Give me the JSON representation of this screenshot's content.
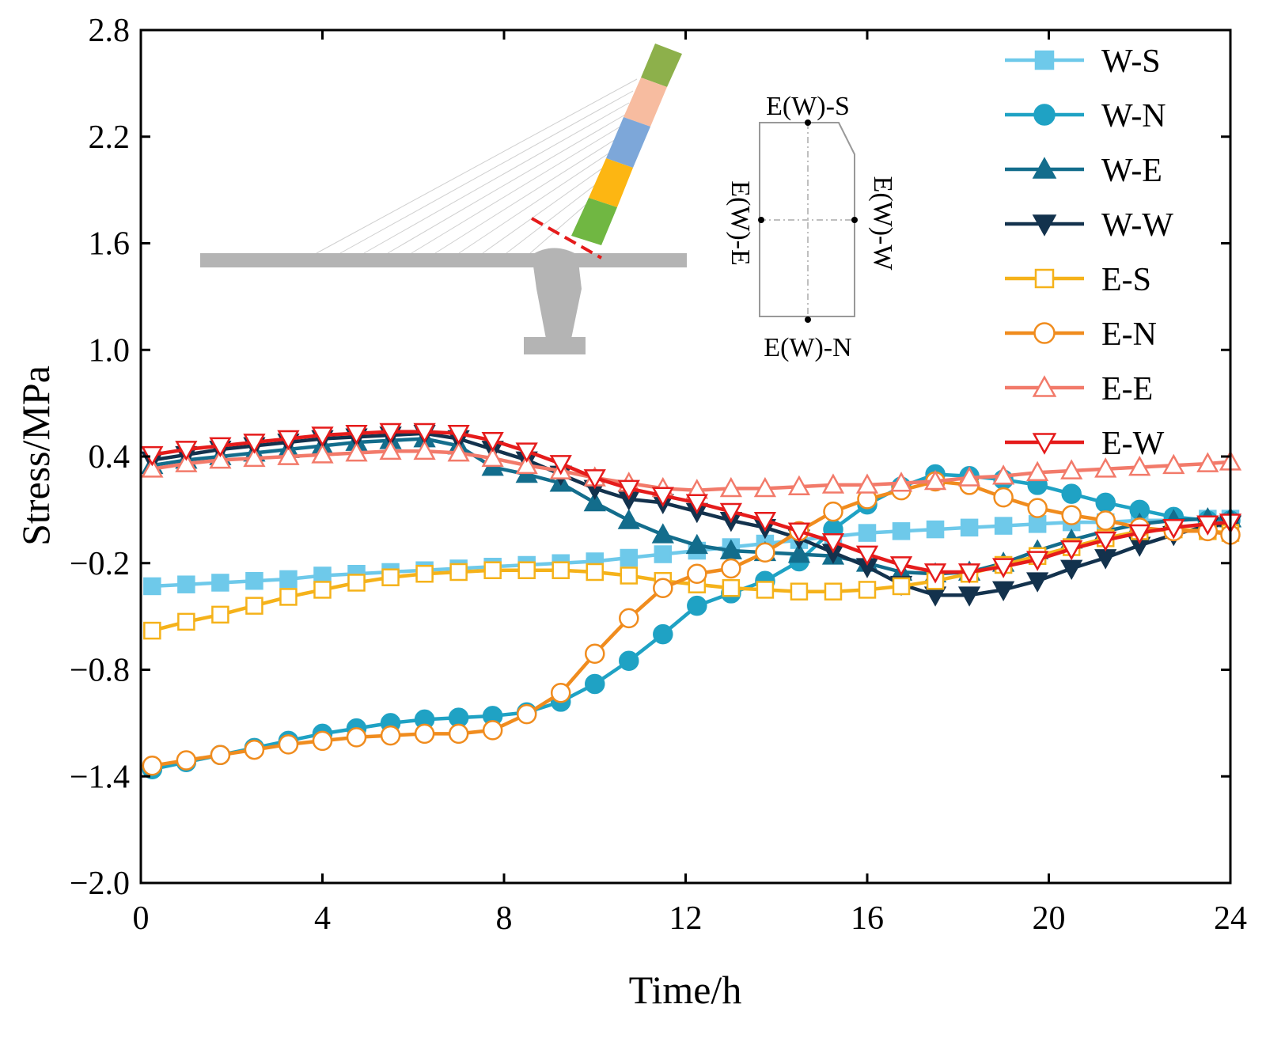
{
  "chart_data": {
    "type": "line",
    "title": "",
    "xlabel": "Time/h",
    "ylabel": "Stress/MPa",
    "xlim": [
      0,
      24
    ],
    "ylim": [
      -2.0,
      2.8
    ],
    "xticks": [
      0,
      4,
      8,
      12,
      16,
      20,
      24
    ],
    "xtick_labels": [
      "0",
      "4",
      "8",
      "12",
      "16",
      "20",
      "24"
    ],
    "yticks": [
      -2.0,
      -1.4,
      -0.8,
      -0.2,
      0.4,
      1.0,
      1.6,
      2.2,
      2.8
    ],
    "ytick_labels": [
      "−2.0",
      "−1.4",
      "−0.8",
      "−0.2",
      "0.4",
      "1.0",
      "1.6",
      "2.2",
      "2.8"
    ],
    "grid": false,
    "legend_position": "top-right",
    "x": [
      0.25,
      1.0,
      1.75,
      2.5,
      3.25,
      4.0,
      4.75,
      5.5,
      6.25,
      7.0,
      7.75,
      8.5,
      9.25,
      10.0,
      10.75,
      11.5,
      12.25,
      13.0,
      13.75,
      14.5,
      15.25,
      16.0,
      16.75,
      17.5,
      18.25,
      19.0,
      19.75,
      20.5,
      21.25,
      22.0,
      22.75,
      23.5,
      24.0
    ],
    "series": [
      {
        "name": "W-S",
        "color": "#6ec9ea",
        "marker": "square",
        "filled": true,
        "values": [
          -0.33,
          -0.32,
          -0.31,
          -0.3,
          -0.29,
          -0.27,
          -0.26,
          -0.25,
          -0.24,
          -0.23,
          -0.22,
          -0.21,
          -0.2,
          -0.19,
          -0.17,
          -0.15,
          -0.13,
          -0.11,
          -0.09,
          -0.07,
          -0.05,
          -0.03,
          -0.02,
          -0.01,
          0.0,
          0.01,
          0.02,
          0.03,
          0.03,
          0.04,
          0.04,
          0.05,
          0.05
        ]
      },
      {
        "name": "W-N",
        "color": "#1fa2c4",
        "marker": "circle",
        "filled": true,
        "values": [
          -1.36,
          -1.32,
          -1.28,
          -1.24,
          -1.2,
          -1.16,
          -1.13,
          -1.1,
          -1.08,
          -1.07,
          -1.06,
          -1.04,
          -0.98,
          -0.88,
          -0.75,
          -0.6,
          -0.44,
          -0.37,
          -0.3,
          -0.19,
          -0.01,
          0.13,
          0.23,
          0.3,
          0.29,
          0.27,
          0.24,
          0.19,
          0.14,
          0.1,
          0.06,
          0.04,
          0.04
        ]
      },
      {
        "name": "W-E",
        "color": "#136d8c",
        "marker": "triangle-up",
        "filled": true,
        "values": [
          0.35,
          0.38,
          0.4,
          0.42,
          0.44,
          0.46,
          0.48,
          0.49,
          0.5,
          0.46,
          0.34,
          0.3,
          0.25,
          0.14,
          0.04,
          -0.04,
          -0.1,
          -0.13,
          -0.14,
          -0.15,
          -0.16,
          -0.2,
          -0.25,
          -0.26,
          -0.25,
          -0.2,
          -0.13,
          -0.07,
          -0.02,
          0.02,
          0.04,
          0.05,
          0.05
        ]
      },
      {
        "name": "W-W",
        "color": "#13324d",
        "marker": "triangle-down",
        "filled": true,
        "values": [
          0.38,
          0.41,
          0.44,
          0.46,
          0.48,
          0.5,
          0.51,
          0.52,
          0.53,
          0.5,
          0.44,
          0.38,
          0.3,
          0.22,
          0.16,
          0.14,
          0.09,
          0.04,
          0.0,
          -0.06,
          -0.14,
          -0.22,
          -0.32,
          -0.38,
          -0.38,
          -0.35,
          -0.3,
          -0.23,
          -0.17,
          -0.1,
          -0.04,
          0.01,
          0.02
        ]
      },
      {
        "name": "E-S",
        "color": "#f5b21a",
        "marker": "square",
        "filled": false,
        "values": [
          -0.58,
          -0.53,
          -0.49,
          -0.44,
          -0.39,
          -0.35,
          -0.31,
          -0.28,
          -0.26,
          -0.25,
          -0.24,
          -0.24,
          -0.24,
          -0.25,
          -0.27,
          -0.3,
          -0.32,
          -0.34,
          -0.35,
          -0.36,
          -0.36,
          -0.35,
          -0.33,
          -0.3,
          -0.26,
          -0.21,
          -0.16,
          -0.11,
          -0.06,
          -0.02,
          -0.01,
          -0.02,
          -0.03
        ]
      },
      {
        "name": "E-N",
        "color": "#f08c1e",
        "marker": "circle",
        "filled": false,
        "values": [
          -1.34,
          -1.31,
          -1.28,
          -1.25,
          -1.22,
          -1.2,
          -1.18,
          -1.17,
          -1.16,
          -1.16,
          -1.14,
          -1.05,
          -0.93,
          -0.71,
          -0.51,
          -0.34,
          -0.26,
          -0.23,
          -0.14,
          -0.02,
          0.09,
          0.16,
          0.21,
          0.26,
          0.24,
          0.17,
          0.11,
          0.07,
          0.04,
          0.0,
          -0.02,
          -0.02,
          -0.04
        ]
      },
      {
        "name": "E-E",
        "color": "#f27a6a",
        "marker": "triangle-up",
        "filled": false,
        "values": [
          0.33,
          0.36,
          0.38,
          0.39,
          0.4,
          0.41,
          0.42,
          0.43,
          0.43,
          0.42,
          0.39,
          0.35,
          0.32,
          0.28,
          0.25,
          0.22,
          0.21,
          0.22,
          0.22,
          0.23,
          0.24,
          0.24,
          0.25,
          0.26,
          0.28,
          0.29,
          0.31,
          0.32,
          0.33,
          0.34,
          0.35,
          0.36,
          0.37
        ]
      },
      {
        "name": "E-W",
        "color": "#e51b1b",
        "marker": "triangle-down",
        "filled": false,
        "values": [
          0.41,
          0.44,
          0.46,
          0.48,
          0.5,
          0.52,
          0.53,
          0.54,
          0.54,
          0.53,
          0.49,
          0.43,
          0.36,
          0.28,
          0.22,
          0.18,
          0.14,
          0.09,
          0.04,
          -0.02,
          -0.08,
          -0.15,
          -0.21,
          -0.25,
          -0.25,
          -0.22,
          -0.18,
          -0.12,
          -0.07,
          -0.03,
          0.0,
          0.02,
          0.03
        ]
      }
    ],
    "inset_labels": {
      "top": "E(W)-S",
      "bottom": "E(W)-N",
      "left": "E(W)-E",
      "right": "E(W)-W"
    }
  }
}
